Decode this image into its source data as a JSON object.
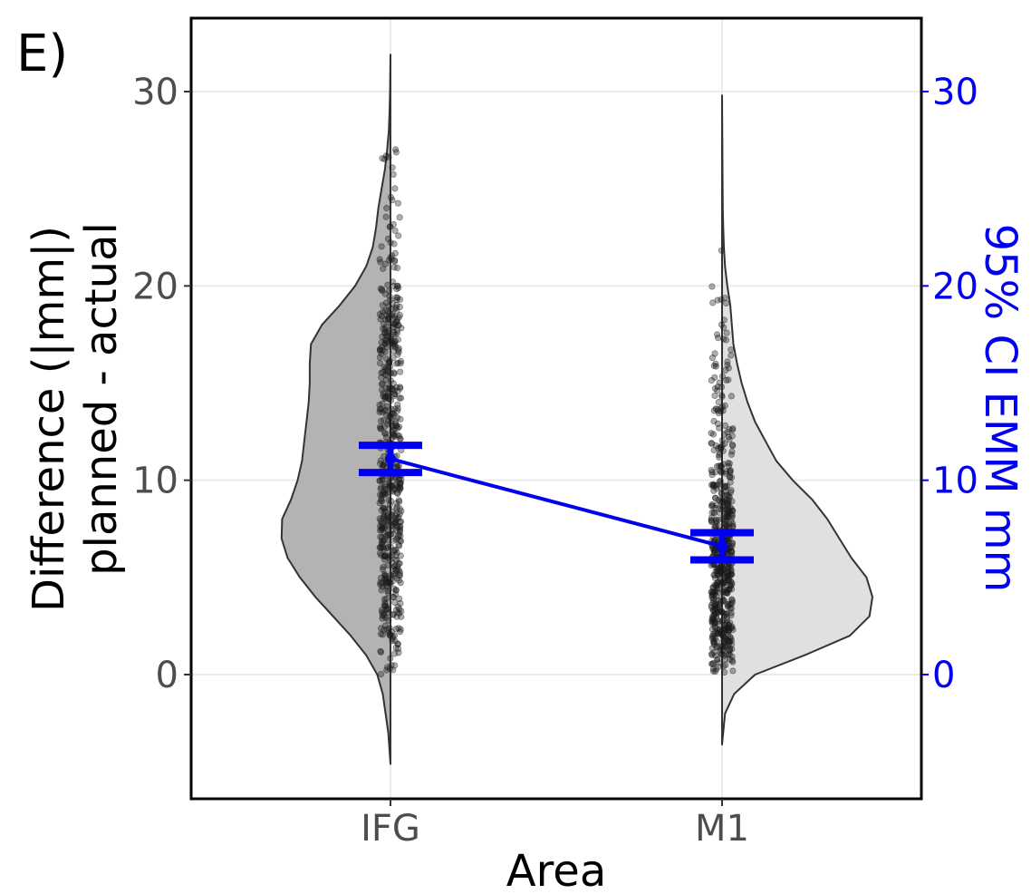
{
  "panel_label": "E)",
  "colors": {
    "violin_ifg": "#b3b3b3",
    "violin_m1": "#e0e0e0",
    "points": "#1a1a1a",
    "emm": "#0000ee",
    "grid": "#ebebeb",
    "axis": "#000000"
  },
  "chart_data": {
    "type": "violin",
    "title": "",
    "xlabel": "Area",
    "ylabel_lines": [
      "Difference (|mm|)",
      "planned - actual"
    ],
    "y2label": "95% CI EMM mm",
    "ylim": [
      -5.8,
      33.8
    ],
    "y_ticks": [
      0,
      10,
      20,
      30
    ],
    "y2_ticks": [
      0,
      10,
      20,
      30
    ],
    "y_tick_labels": [
      "0",
      "10",
      "20",
      "30"
    ],
    "y2_tick_labels": [
      "0",
      "10",
      "20",
      "30"
    ],
    "categories": [
      "IFG",
      "M1"
    ],
    "grid": true,
    "violins": [
      {
        "category": "IFG",
        "side": "left",
        "range": [
          -4.6,
          31.9
        ],
        "density": [
          [
            -4.6,
            0.0
          ],
          [
            -3,
            0.02
          ],
          [
            -1,
            0.07
          ],
          [
            0,
            0.12
          ],
          [
            1,
            0.22
          ],
          [
            2,
            0.36
          ],
          [
            3,
            0.52
          ],
          [
            4,
            0.68
          ],
          [
            5,
            0.82
          ],
          [
            6,
            0.93
          ],
          [
            7,
            0.985
          ],
          [
            8,
            0.98
          ],
          [
            9,
            0.9
          ],
          [
            10,
            0.84
          ],
          [
            11,
            0.8
          ],
          [
            12,
            0.78
          ],
          [
            13,
            0.76
          ],
          [
            14,
            0.74
          ],
          [
            15,
            0.73
          ],
          [
            16,
            0.73
          ],
          [
            17,
            0.72
          ],
          [
            18,
            0.62
          ],
          [
            19,
            0.46
          ],
          [
            20,
            0.32
          ],
          [
            21,
            0.22
          ],
          [
            22,
            0.16
          ],
          [
            23,
            0.13
          ],
          [
            24,
            0.11
          ],
          [
            25,
            0.08
          ],
          [
            26,
            0.05
          ],
          [
            27,
            0.03
          ],
          [
            28,
            0.015
          ],
          [
            29,
            0.008
          ],
          [
            30,
            0.004
          ],
          [
            31.9,
            0.0
          ]
        ]
      },
      {
        "category": "M1",
        "side": "right",
        "range": [
          -3.6,
          29.8
        ],
        "density": [
          [
            -3.6,
            0.0
          ],
          [
            -2,
            0.02
          ],
          [
            -1,
            0.08
          ],
          [
            0,
            0.22
          ],
          [
            1,
            0.55
          ],
          [
            2,
            0.85
          ],
          [
            3,
            0.98
          ],
          [
            4,
            1.0
          ],
          [
            5,
            0.96
          ],
          [
            6,
            0.86
          ],
          [
            7,
            0.78
          ],
          [
            8,
            0.7
          ],
          [
            9,
            0.6
          ],
          [
            10,
            0.47
          ],
          [
            11,
            0.36
          ],
          [
            12,
            0.29
          ],
          [
            13,
            0.22
          ],
          [
            14,
            0.17
          ],
          [
            15,
            0.13
          ],
          [
            16,
            0.1
          ],
          [
            17,
            0.075
          ],
          [
            18,
            0.065
          ],
          [
            19,
            0.055
          ],
          [
            20,
            0.035
          ],
          [
            21,
            0.02
          ],
          [
            22,
            0.012
          ],
          [
            23,
            0.008
          ],
          [
            24,
            0.005
          ],
          [
            26,
            0.003
          ],
          [
            29.8,
            0.0
          ]
        ]
      }
    ],
    "points": [
      {
        "category": "IFG",
        "n": 600,
        "range": [
          0,
          27.3
        ]
      },
      {
        "category": "M1",
        "n": 600,
        "range": [
          0,
          26.4
        ]
      }
    ],
    "emm": [
      {
        "category": "IFG",
        "estimate": 11.1,
        "lower": 10.4,
        "upper": 11.8
      },
      {
        "category": "M1",
        "estimate": 6.6,
        "lower": 5.9,
        "upper": 7.3
      }
    ]
  }
}
